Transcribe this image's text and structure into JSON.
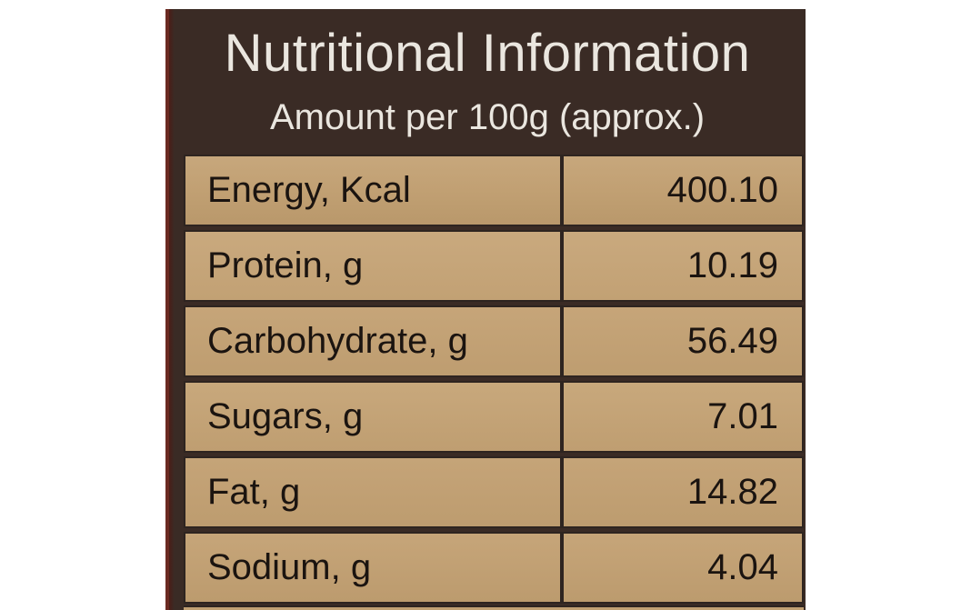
{
  "label": {
    "title": "Nutritional Information",
    "subtitle": "Amount per 100g (approx.)",
    "rows": [
      {
        "name": "Energy, Kcal",
        "value": "400.10"
      },
      {
        "name": "Protein, g",
        "value": "10.19"
      },
      {
        "name": "Carbohydrate, g",
        "value": "56.49"
      },
      {
        "name": "Sugars, g",
        "value": "7.01"
      },
      {
        "name": "Fat, g",
        "value": "14.82"
      },
      {
        "name": "Sodium, g",
        "value": "4.04"
      }
    ]
  },
  "colors": {
    "header_background": "#3a2b25",
    "header_text": "#eae6df",
    "cell_background": "#c1a073",
    "cell_text": "#1b1410",
    "border": "#2e2420"
  }
}
